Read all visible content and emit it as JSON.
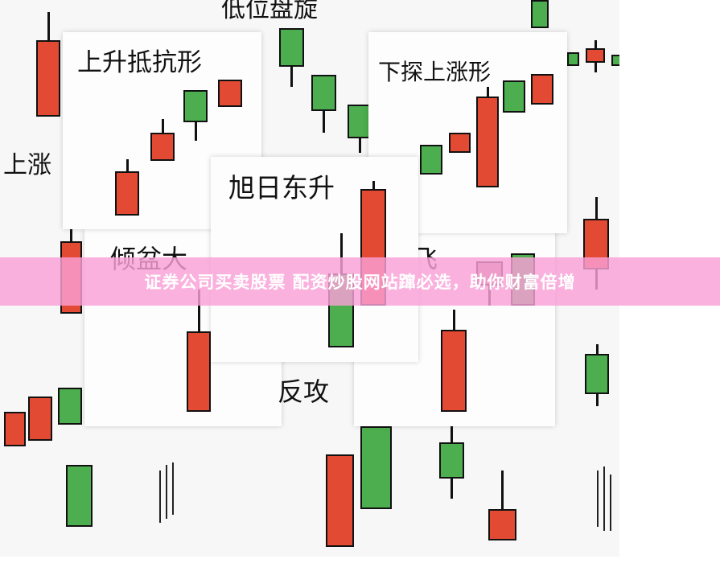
{
  "labels": {
    "low_hover": "低位盘旋",
    "rising": "上涨",
    "rising_resistance": "上升抵抗形",
    "probe_rise": "下探上涨形",
    "sunrise": "旭日东升",
    "downpour": "倾盆大",
    "fly": "飞",
    "counter_attack": "反攻"
  },
  "banner": {
    "text": "证券公司买卖股票 配资炒股网站蹿必选，助你财富倍增"
  },
  "colors": {
    "bull_red": "#e24a33",
    "bear_green": "#4cae4f",
    "banner": "#f8a8d8",
    "muted_candle": "#b88a8a"
  }
}
